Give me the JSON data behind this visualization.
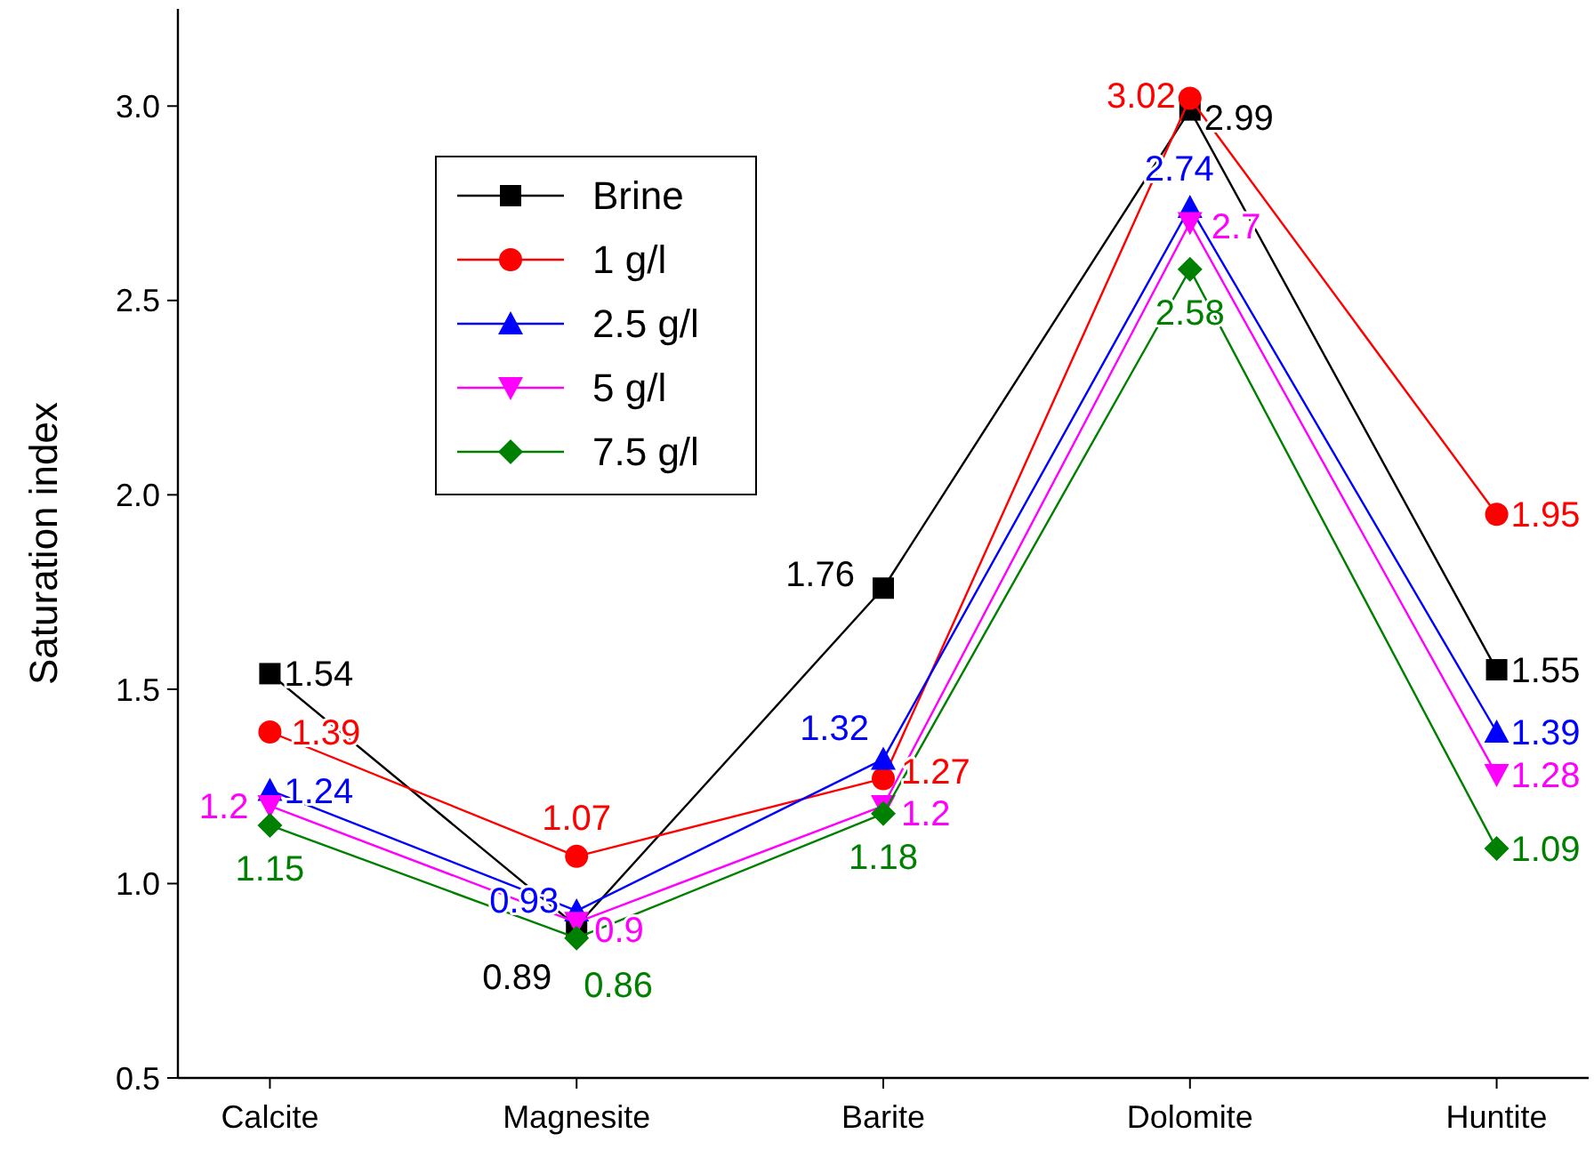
{
  "chart_data": {
    "type": "line",
    "ylabel": "Saturation index",
    "categories": [
      "Calcite",
      "Magnesite",
      "Barite",
      "Dolomite",
      "Huntite"
    ],
    "ylim": [
      0.5,
      3.25
    ],
    "yticks": [
      0.5,
      {
        "value": 1,
        "label": "1.0"
      },
      1.5,
      {
        "value": 2,
        "label": "2.0"
      },
      2.5,
      {
        "value": 3,
        "label": "3.0"
      }
    ],
    "legend": "top left",
    "data_labels": true,
    "grid": false,
    "series": [
      {
        "name": "Brine",
        "color": "#000000",
        "marker": "square",
        "values": [
          1.54,
          0.89,
          1.76,
          2.99,
          1.55
        ]
      },
      {
        "name": "1 g/l",
        "color": "#ff0000",
        "marker": "circle",
        "values": [
          1.39,
          1.07,
          1.27,
          3.02,
          1.95
        ]
      },
      {
        "name": "2.5 g/l",
        "color": "#0000ff",
        "marker": "triangle",
        "values": [
          1.24,
          0.93,
          1.32,
          2.74,
          1.39
        ]
      },
      {
        "name": "5 g/l",
        "color": "#ff00ff",
        "marker": "triangle_down",
        "values": [
          1.2,
          0.9,
          1.2,
          2.7,
          1.28
        ]
      },
      {
        "name": "7.5 g/l",
        "color": "#008000",
        "marker": "diamond",
        "values": [
          1.15,
          0.86,
          1.18,
          2.58,
          1.09
        ]
      }
    ]
  }
}
